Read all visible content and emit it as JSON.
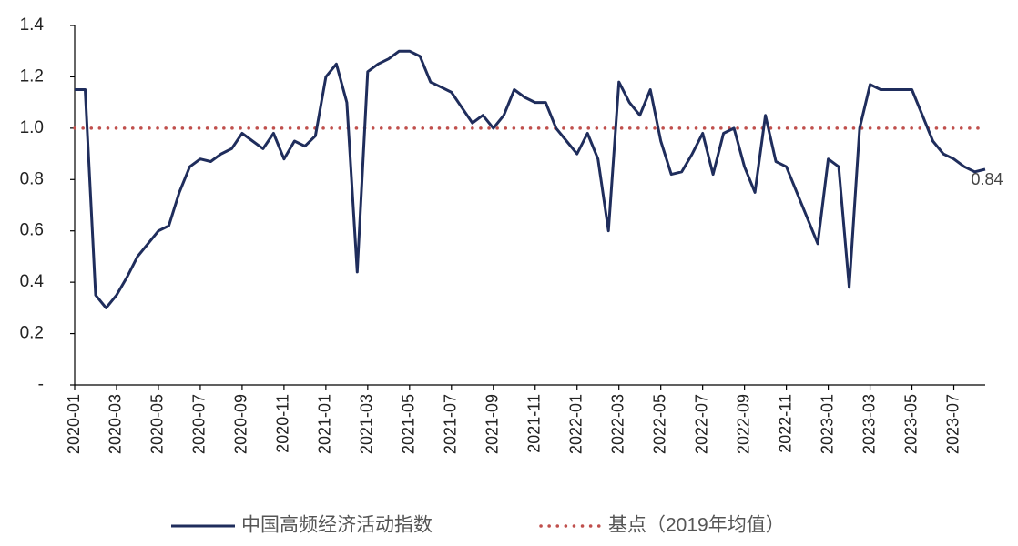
{
  "chart_data": {
    "type": "line",
    "x": [
      "2020-01",
      "2020-01",
      "2020-02",
      "2020-02",
      "2020-03",
      "2020-03",
      "2020-04",
      "2020-04",
      "2020-05",
      "2020-05",
      "2020-06",
      "2020-06",
      "2020-07",
      "2020-07",
      "2020-08",
      "2020-08",
      "2020-09",
      "2020-09",
      "2020-10",
      "2020-10",
      "2020-11",
      "2020-11",
      "2020-12",
      "2020-12",
      "2021-01",
      "2021-01",
      "2021-02",
      "2021-02",
      "2021-03",
      "2021-03",
      "2021-04",
      "2021-04",
      "2021-05",
      "2021-05",
      "2021-06",
      "2021-06",
      "2021-07",
      "2021-07",
      "2021-08",
      "2021-08",
      "2021-09",
      "2021-09",
      "2021-10",
      "2021-10",
      "2021-11",
      "2021-11",
      "2021-12",
      "2021-12",
      "2022-01",
      "2022-01",
      "2022-02",
      "2022-02",
      "2022-03",
      "2022-03",
      "2022-04",
      "2022-04",
      "2022-05",
      "2022-05",
      "2022-06",
      "2022-06",
      "2022-07",
      "2022-07",
      "2022-08",
      "2022-08",
      "2022-09",
      "2022-09",
      "2022-10",
      "2022-10",
      "2022-11",
      "2022-11",
      "2022-12",
      "2022-12",
      "2023-01",
      "2023-01",
      "2023-02",
      "2023-02",
      "2023-03",
      "2023-03",
      "2023-04",
      "2023-04",
      "2023-05",
      "2023-05",
      "2023-06",
      "2023-06",
      "2023-07",
      "2023-07",
      "2023-08",
      "2023-08"
    ],
    "series": [
      {
        "name": "中国高频经济活动指数",
        "color": "#1f2d5c",
        "values": [
          1.15,
          1.15,
          0.35,
          0.3,
          0.35,
          0.42,
          0.5,
          0.55,
          0.6,
          0.62,
          0.75,
          0.85,
          0.88,
          0.87,
          0.9,
          0.92,
          0.98,
          0.95,
          0.92,
          0.98,
          0.88,
          0.95,
          0.93,
          0.97,
          1.2,
          1.25,
          1.1,
          0.44,
          1.22,
          1.25,
          1.27,
          1.3,
          1.3,
          1.28,
          1.18,
          1.16,
          1.14,
          1.08,
          1.02,
          1.05,
          1.0,
          1.05,
          1.15,
          1.12,
          1.1,
          1.1,
          1.0,
          0.95,
          0.9,
          0.98,
          0.88,
          0.6,
          1.18,
          1.1,
          1.05,
          1.15,
          0.95,
          0.82,
          0.83,
          0.9,
          0.98,
          0.82,
          0.98,
          1.0,
          0.85,
          0.75,
          1.05,
          0.87,
          0.85,
          0.75,
          0.65,
          0.55,
          0.88,
          0.85,
          0.38,
          1.0,
          1.17,
          1.15,
          1.15,
          1.15,
          1.15,
          1.05,
          0.95,
          0.9,
          0.88,
          0.85,
          0.83,
          0.84
        ]
      }
    ],
    "reference_line": {
      "name": "基点（2019年均值）",
      "value": 1,
      "color": "#c0504d"
    },
    "ylim": [
      0,
      1.4
    ],
    "yticks": [
      {
        "value": 0,
        "label": "-"
      },
      0.2,
      0.4,
      0.6,
      0.8,
      {
        "value": 1,
        "label": "1.0"
      },
      1.2,
      1.4
    ],
    "xticks": [
      "2020-01",
      "2020-03",
      "2020-05",
      "2020-07",
      "2020-09",
      "2020-11",
      "2021-01",
      "2021-03",
      "2021-05",
      "2021-07",
      "2021-09",
      "2021-11",
      "2022-01",
      "2022-03",
      "2022-05",
      "2022-07",
      "2022-09",
      "2022-11",
      "2023-01",
      "2023-03",
      "2023-05",
      "2023-07"
    ]
  }
}
